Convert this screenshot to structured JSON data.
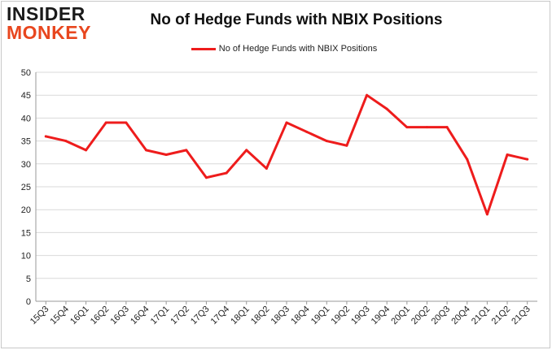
{
  "logo": {
    "line1": "INSIDER",
    "line2": "MONKEY"
  },
  "chart_data": {
    "type": "line",
    "title": "No of Hedge Funds with NBIX Positions",
    "xlabel": "",
    "ylabel": "",
    "ylim": [
      0,
      50
    ],
    "yticks": [
      0,
      5,
      10,
      15,
      20,
      25,
      30,
      35,
      40,
      45,
      50
    ],
    "grid": true,
    "legend_position": "top-center",
    "categories": [
      "15Q3",
      "15Q4",
      "16Q1",
      "16Q2",
      "16Q3",
      "16Q4",
      "17Q1",
      "17Q2",
      "17Q3",
      "17Q4",
      "18Q1",
      "18Q2",
      "18Q3",
      "18Q4",
      "19Q1",
      "19Q2",
      "19Q3",
      "19Q4",
      "20Q1",
      "20Q2",
      "20Q3",
      "20Q4",
      "21Q1",
      "21Q2",
      "21Q3"
    ],
    "series": [
      {
        "name": "No of Hedge Funds with NBIX Positions",
        "color": "#ee1c1c",
        "values": [
          36,
          35,
          33,
          39,
          39,
          33,
          32,
          33,
          27,
          28,
          33,
          29,
          39,
          37,
          35,
          34,
          45,
          42,
          38,
          38,
          38,
          31,
          19,
          32,
          31
        ]
      }
    ]
  }
}
